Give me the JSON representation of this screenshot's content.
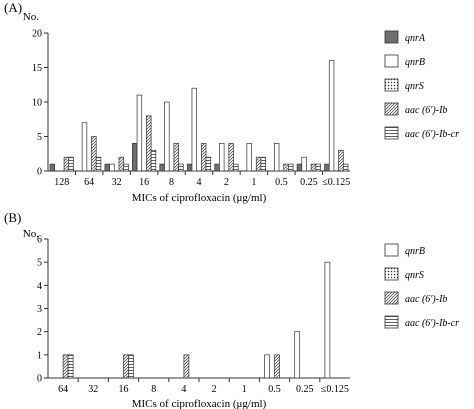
{
  "chart_data": [
    {
      "type": "bar",
      "panel_label": "(A)",
      "ylabel": "No.",
      "xlabel": "MICs of ciprofloxacin (μg/ml)",
      "ylim": [
        0,
        20
      ],
      "yticks": [
        0,
        5,
        10,
        15,
        20
      ],
      "categories": [
        "128",
        "64",
        "32",
        "16",
        "8",
        "4",
        "2",
        "1",
        "0.5",
        "0.25",
        "≤0.125"
      ],
      "legend_position": "right",
      "series": [
        {
          "name": "qnrA",
          "pattern": "dark",
          "values": [
            1,
            0,
            1,
            4,
            1,
            1,
            1,
            0,
            0,
            1,
            1
          ]
        },
        {
          "name": "qnrB",
          "pattern": "white",
          "values": [
            0,
            7,
            1,
            11,
            10,
            12,
            4,
            4,
            4,
            2,
            16
          ]
        },
        {
          "name": "qnrS",
          "pattern": "dots",
          "values": [
            0,
            0,
            0,
            0,
            0,
            0,
            0,
            0,
            0,
            0,
            0
          ]
        },
        {
          "name": "aac (6')-Ib",
          "pattern": "diag",
          "values": [
            2,
            5,
            2,
            8,
            4,
            4,
            4,
            2,
            1,
            1,
            3
          ]
        },
        {
          "name": "aac (6')-Ib-cr",
          "pattern": "hlines",
          "values": [
            2,
            2,
            1,
            3,
            1,
            2,
            1,
            2,
            1,
            1,
            1
          ]
        }
      ]
    },
    {
      "type": "bar",
      "panel_label": "(B)",
      "ylabel": "No.",
      "xlabel": "MICs of ciprofloxacin (μg/ml)",
      "ylim": [
        0,
        6
      ],
      "yticks": [
        0,
        1,
        2,
        3,
        4,
        5,
        6
      ],
      "categories": [
        "64",
        "32",
        "16",
        "8",
        "4",
        "2",
        "1",
        "0.5",
        "0.25",
        "≤0.125"
      ],
      "legend_position": "right",
      "series": [
        {
          "name": "qnrB",
          "pattern": "white",
          "values": [
            0,
            0,
            0,
            0,
            0,
            0,
            0,
            1,
            2,
            5
          ]
        },
        {
          "name": "qnrS",
          "pattern": "dots",
          "values": [
            0,
            0,
            0,
            0,
            0,
            0,
            0,
            0,
            0,
            0
          ]
        },
        {
          "name": "aac (6')-Ib",
          "pattern": "diag",
          "values": [
            1,
            0,
            1,
            0,
            1,
            0,
            0,
            1,
            0,
            0
          ]
        },
        {
          "name": "aac (6')-Ib-cr",
          "pattern": "hlines",
          "values": [
            1,
            0,
            1,
            0,
            0,
            0,
            0,
            0,
            0,
            0
          ]
        }
      ]
    }
  ]
}
